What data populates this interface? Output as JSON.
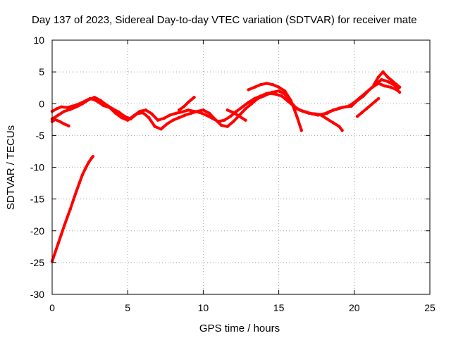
{
  "chart_data": {
    "type": "scatter",
    "title": "Day 137 of 2023, Sidereal Day-to-day VTEC variation (SDTVAR) for receiver mate",
    "xlabel": "GPS time / hours",
    "ylabel": "SDTVAR / TECUs",
    "xlim": [
      0,
      25
    ],
    "ylim": [
      -30,
      10
    ],
    "xticks": [
      0,
      5,
      10,
      15,
      20,
      25
    ],
    "yticks": [
      -30,
      -25,
      -20,
      -15,
      -10,
      -5,
      0,
      5,
      10
    ],
    "grid": true,
    "series_color": "#ff0000",
    "series": [
      {
        "name": "trace-a",
        "x": [
          0.0,
          0.3,
          0.6,
          1.0,
          1.3,
          1.6,
          2.0,
          2.5,
          2.8,
          3.1,
          3.4,
          3.8,
          4.2,
          4.6,
          5.0,
          5.4,
          5.8,
          6.2,
          6.6,
          7.0,
          7.4,
          7.8,
          8.2,
          8.6,
          9.0,
          9.4,
          9.8,
          10.2,
          10.6,
          11.0,
          11.4,
          11.8,
          12.2,
          12.6,
          13.0,
          13.4,
          13.8,
          14.2,
          14.6,
          15.0,
          15.4,
          15.8,
          16.2,
          16.6,
          17.0,
          17.4,
          17.8,
          18.2,
          18.6,
          19.0,
          19.4,
          19.8,
          20.2,
          20.6,
          21.0,
          21.4,
          21.8,
          22.2,
          22.6,
          22.9
        ],
        "y": [
          -1.2,
          -0.8,
          -0.5,
          -0.6,
          -0.4,
          -0.2,
          0.2,
          0.8,
          0.6,
          0.2,
          -0.3,
          -0.6,
          -1.5,
          -2.2,
          -2.6,
          -1.9,
          -1.2,
          -1.0,
          -1.6,
          -2.6,
          -2.3,
          -1.8,
          -1.5,
          -1.3,
          -1.0,
          -1.2,
          -1.4,
          -1.8,
          -2.3,
          -2.8,
          -2.6,
          -2.0,
          -1.2,
          -0.5,
          0.2,
          0.8,
          1.2,
          1.6,
          1.8,
          2.0,
          1.5,
          0.2,
          -0.8,
          -1.2,
          -1.5,
          -1.6,
          -1.7,
          -1.5,
          -1.0,
          -0.7,
          -0.5,
          -0.4,
          0.5,
          1.2,
          2.2,
          3.0,
          3.8,
          3.5,
          3.0,
          2.4
        ]
      },
      {
        "name": "trace-b",
        "x": [
          0.0,
          0.4,
          0.8,
          1.2,
          1.6,
          2.0,
          2.4,
          2.8,
          3.2,
          3.6,
          4.0,
          4.4,
          4.8,
          5.2,
          5.6,
          6.0,
          6.4,
          6.8,
          7.2,
          7.6,
          8.0,
          8.4,
          8.8,
          9.2,
          9.6,
          10.0,
          10.4,
          10.8,
          11.2,
          11.6,
          12.0,
          12.4,
          12.8,
          13.2,
          13.6,
          14.0,
          14.4,
          14.8,
          15.2,
          15.6,
          16.0,
          16.4,
          16.8,
          17.2,
          17.6,
          18.0,
          18.4,
          18.8,
          19.2,
          19.6,
          20.0,
          20.4,
          20.8,
          21.2,
          21.6,
          22.0,
          22.4,
          22.8,
          23.0
        ],
        "y": [
          -2.4,
          -1.8,
          -1.2,
          -0.9,
          -0.5,
          0.0,
          0.6,
          1.0,
          0.5,
          -0.2,
          -0.8,
          -1.3,
          -2.0,
          -2.4,
          -1.6,
          -1.4,
          -2.2,
          -3.6,
          -4.0,
          -3.2,
          -2.6,
          -2.2,
          -1.8,
          -1.5,
          -1.2,
          -1.0,
          -1.5,
          -2.5,
          -3.4,
          -3.6,
          -2.8,
          -1.8,
          -0.8,
          0.0,
          0.8,
          1.2,
          1.6,
          1.5,
          1.2,
          0.4,
          -0.4,
          -1.0,
          -1.3,
          -1.6,
          -1.8,
          -1.6,
          -1.2,
          -0.9,
          -0.6,
          -0.4,
          0.2,
          1.0,
          1.8,
          2.6,
          3.2,
          2.8,
          2.6,
          2.2,
          1.8
        ]
      },
      {
        "name": "trace-c",
        "x": [
          0.0,
          0.2,
          0.5,
          0.8,
          1.1
        ],
        "y": [
          -2.8,
          -2.5,
          -2.8,
          -3.2,
          -3.5
        ]
      },
      {
        "name": "trace-d",
        "x": [
          8.4,
          8.7,
          9.0,
          9.2,
          9.4
        ],
        "y": [
          -1.0,
          -0.5,
          0.2,
          0.6,
          1.0
        ]
      },
      {
        "name": "trace-e",
        "x": [
          13.0,
          13.4,
          13.8,
          14.2,
          14.6,
          15.0,
          15.4,
          15.8,
          16.2,
          16.5
        ],
        "y": [
          2.2,
          2.6,
          3.0,
          3.2,
          3.0,
          2.6,
          2.0,
          0.5,
          -2.0,
          -4.2
        ]
      },
      {
        "name": "trace-f",
        "x": [
          11.6,
          12.0,
          12.4,
          12.8
        ],
        "y": [
          -1.0,
          -1.4,
          -2.0,
          -2.6
        ]
      },
      {
        "name": "trace-g",
        "x": [
          17.8,
          18.2,
          18.6,
          19.0,
          19.2
        ],
        "y": [
          -1.8,
          -2.4,
          -3.0,
          -3.6,
          -4.2
        ]
      },
      {
        "name": "trace-h",
        "x": [
          20.2,
          20.5,
          20.8,
          21.1,
          21.4,
          21.6
        ],
        "y": [
          -2.0,
          -1.4,
          -0.8,
          -0.2,
          0.4,
          0.8
        ]
      },
      {
        "name": "trace-i",
        "x": [
          21.3,
          21.6,
          21.9,
          22.2,
          22.5,
          22.8,
          23.0
        ],
        "y": [
          3.0,
          4.2,
          5.0,
          4.2,
          3.6,
          3.0,
          2.6
        ]
      },
      {
        "name": "trace-j",
        "x": [
          0.0,
          0.2,
          0.4,
          0.6,
          0.8,
          1.0,
          1.2,
          1.4,
          1.6,
          1.8,
          2.0,
          2.2,
          2.4,
          2.6,
          2.7
        ],
        "y": [
          -24.8,
          -23.4,
          -22.0,
          -20.6,
          -19.2,
          -17.9,
          -16.6,
          -15.2,
          -13.8,
          -12.5,
          -11.2,
          -10.2,
          -9.3,
          -8.6,
          -8.3
        ]
      }
    ]
  }
}
